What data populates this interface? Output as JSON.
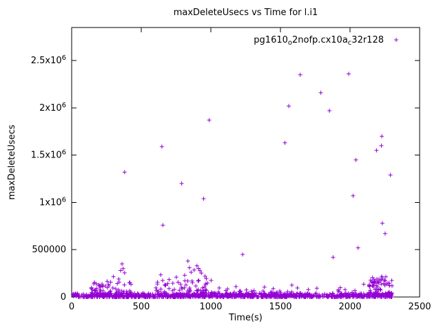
{
  "accent_color": "#9400D3",
  "chart_data": {
    "type": "scatter",
    "title": "maxDeleteUsecs vs Time for l.i1",
    "xlabel": "Time(s)",
    "ylabel": "maxDeleteUsecs",
    "series_name": "pg1610o2nofp.cx10ac32r128",
    "legend_segments": [
      {
        "text": "pg1610",
        "sub": false
      },
      {
        "text": "o",
        "sub": true
      },
      {
        "text": "2nofp.cx10a",
        "sub": false
      },
      {
        "text": "c",
        "sub": true
      },
      {
        "text": "32r128",
        "sub": false
      }
    ],
    "legend_position": "top-right",
    "marker": "plus",
    "color": "#9400D3",
    "grid": false,
    "xlim": [
      0,
      2500
    ],
    "ylim": [
      0,
      2850000
    ],
    "xticks": [
      {
        "value": 0,
        "label": "0"
      },
      {
        "value": 500,
        "label": "500"
      },
      {
        "value": 1000,
        "label": "1000"
      },
      {
        "value": 1500,
        "label": "1500"
      },
      {
        "value": 2000,
        "label": "2000"
      },
      {
        "value": 2500,
        "label": "2500"
      }
    ],
    "yticks": [
      {
        "value": 0,
        "label": "0"
      },
      {
        "value": 500000,
        "label": "500000"
      },
      {
        "value": 1000000,
        "label": "1x10^6"
      },
      {
        "value": 1500000,
        "label": "1.5x10^6"
      },
      {
        "value": 2000000,
        "label": "2x10^6"
      },
      {
        "value": 2500000,
        "label": "2.5x10^6"
      }
    ],
    "points": [
      [
        380,
        1320000
      ],
      [
        648,
        1590000
      ],
      [
        655,
        760000
      ],
      [
        790,
        1200000
      ],
      [
        948,
        1040000
      ],
      [
        988,
        1870000
      ],
      [
        1228,
        450000
      ],
      [
        1532,
        1630000
      ],
      [
        1560,
        2020000
      ],
      [
        1642,
        2350000
      ],
      [
        1790,
        2160000
      ],
      [
        1852,
        1970000
      ],
      [
        1878,
        420000
      ],
      [
        1990,
        2360000
      ],
      [
        2022,
        1070000
      ],
      [
        2042,
        1450000
      ],
      [
        2058,
        520000
      ],
      [
        2190,
        1550000
      ],
      [
        2225,
        1600000
      ],
      [
        2228,
        1700000
      ],
      [
        2232,
        780000
      ],
      [
        2252,
        670000
      ],
      [
        2290,
        1290000
      ],
      [
        180,
        90000
      ],
      [
        218,
        120000
      ],
      [
        255,
        165000
      ],
      [
        300,
        215000
      ],
      [
        338,
        190000
      ],
      [
        352,
        280000
      ],
      [
        362,
        350000
      ],
      [
        370,
        300000
      ],
      [
        380,
        255000
      ],
      [
        415,
        150000
      ],
      [
        640,
        235000
      ],
      [
        700,
        185000
      ],
      [
        752,
        210000
      ],
      [
        812,
        230000
      ],
      [
        835,
        380000
      ],
      [
        846,
        310000
      ],
      [
        858,
        262000
      ],
      [
        880,
        285000
      ],
      [
        900,
        330000
      ],
      [
        912,
        302000
      ],
      [
        922,
        278000
      ],
      [
        932,
        252000
      ],
      [
        958,
        220000
      ],
      [
        968,
        195000
      ],
      [
        1002,
        175000
      ],
      [
        1060,
        95000
      ],
      [
        1120,
        85000
      ],
      [
        1180,
        110000
      ],
      [
        1255,
        75000
      ],
      [
        1310,
        68000
      ],
      [
        1385,
        105000
      ],
      [
        1448,
        88000
      ],
      [
        1582,
        125000
      ],
      [
        1622,
        95000
      ],
      [
        1700,
        78000
      ],
      [
        1762,
        92000
      ],
      [
        1930,
        98000
      ],
      [
        2098,
        135000
      ],
      [
        2148,
        178000
      ],
      [
        2162,
        205000
      ],
      [
        2175,
        168000
      ],
      [
        2198,
        158000
      ],
      [
        2208,
        188000
      ],
      [
        2218,
        172000
      ],
      [
        2242,
        142000
      ],
      [
        2262,
        135000
      ],
      [
        2302,
        118000
      ]
    ],
    "noise": {
      "seed": 42,
      "band": {
        "x_min": 5,
        "x_max": 2310,
        "count": 900,
        "y_max": 40000,
        "pow": 2.2
      },
      "clusters": [
        {
          "x_min": 140,
          "x_max": 430,
          "count": 70,
          "y_min": 20000,
          "y_max": 160000,
          "pow": 2
        },
        {
          "x_min": 600,
          "x_max": 990,
          "count": 90,
          "y_min": 20000,
          "y_max": 180000,
          "pow": 2
        },
        {
          "x_min": 1000,
          "x_max": 1300,
          "count": 30,
          "y_min": 15000,
          "y_max": 70000,
          "pow": 2
        },
        {
          "x_min": 1350,
          "x_max": 1650,
          "count": 30,
          "y_min": 15000,
          "y_max": 70000,
          "pow": 2
        },
        {
          "x_min": 1900,
          "x_max": 2110,
          "count": 25,
          "y_min": 15000,
          "y_max": 80000,
          "pow": 2
        },
        {
          "x_min": 2130,
          "x_max": 2300,
          "count": 70,
          "y_min": 20000,
          "y_max": 220000,
          "pow": 2
        }
      ]
    }
  }
}
